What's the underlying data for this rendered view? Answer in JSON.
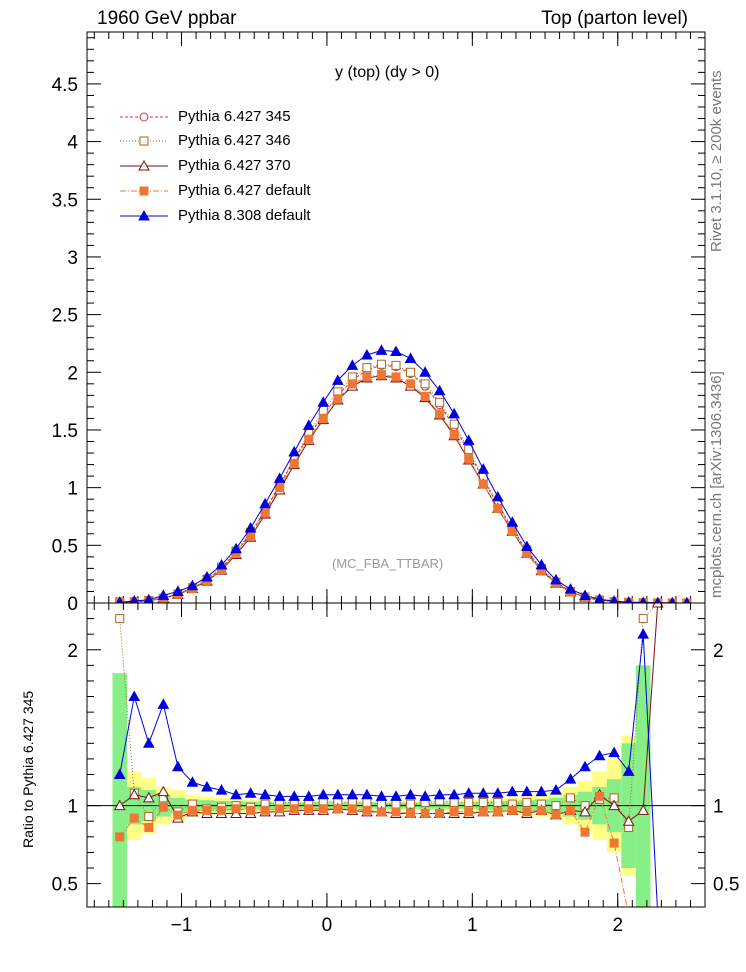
{
  "header": {
    "left": "1960 GeV ppbar",
    "right": "Top (parton level)",
    "plot_title": "y (top) (dy > 0)",
    "reference_label": "(MC_FBA_TTBAR)"
  },
  "side_labels": {
    "rivet": "Rivet 3.1.10, ≥ 200k events",
    "source": "mcplots.cern.ch [arXiv:1306.3436]"
  },
  "ratio_ylabel": "Ratio to Pythia 6.427 345",
  "colors": {
    "p345": "#cc3344",
    "p346": "#aa6622",
    "p370": "#771111",
    "pdefault": "#ee7733",
    "p8": "#0000dd",
    "band_yellow": "#ffff88",
    "band_green": "#88ee88"
  },
  "chart_data": [
    {
      "type": "line",
      "panel": "main",
      "xlim": [
        -1.65,
        2.6
      ],
      "ylim": [
        0,
        4.95
      ],
      "xticks": [
        -1,
        0,
        1,
        2
      ],
      "yticks": [
        0,
        0.5,
        1,
        1.5,
        2,
        2.5,
        3,
        3.5,
        4,
        4.5
      ],
      "ytick_labels": [
        "0",
        "0.5",
        "1",
        "1.5",
        "2",
        "2.5",
        "3",
        "3.5",
        "4",
        "4.5"
      ],
      "x": [
        -1.425,
        -1.325,
        -1.225,
        -1.125,
        -1.025,
        -0.925,
        -0.825,
        -0.725,
        -0.625,
        -0.525,
        -0.425,
        -0.325,
        -0.225,
        -0.125,
        -0.025,
        0.075,
        0.175,
        0.275,
        0.375,
        0.475,
        0.575,
        0.675,
        0.775,
        0.875,
        0.975,
        1.075,
        1.175,
        1.275,
        1.375,
        1.475,
        1.575,
        1.675,
        1.775,
        1.875,
        1.975,
        2.075,
        2.175,
        2.275,
        2.375,
        2.475
      ],
      "series": [
        {
          "name": "Pythia 6.427 345",
          "key": "p345",
          "marker": "circle-open",
          "dash": "3,2",
          "values": [
            0.005,
            0.01,
            0.02,
            0.04,
            0.08,
            0.13,
            0.2,
            0.3,
            0.44,
            0.6,
            0.8,
            1.02,
            1.24,
            1.45,
            1.63,
            1.8,
            1.93,
            2.02,
            2.06,
            2.05,
            1.99,
            1.88,
            1.72,
            1.53,
            1.31,
            1.07,
            0.85,
            0.64,
            0.45,
            0.29,
            0.18,
            0.1,
            0.05,
            0.025,
            0.012,
            0.006,
            0.003,
            0.001,
            0.0005,
            0.0002
          ]
        },
        {
          "name": "Pythia 6.427 346",
          "key": "p346",
          "marker": "square-open",
          "dash": "1,2",
          "values": [
            0.01,
            0.012,
            0.022,
            0.042,
            0.078,
            0.132,
            0.205,
            0.31,
            0.45,
            0.61,
            0.81,
            1.03,
            1.25,
            1.47,
            1.67,
            1.83,
            1.96,
            2.04,
            2.07,
            2.06,
            2.0,
            1.9,
            1.74,
            1.55,
            1.33,
            1.09,
            0.86,
            0.65,
            0.46,
            0.3,
            0.18,
            0.1,
            0.052,
            0.026,
            0.013,
            0.006,
            0.003,
            0.001,
            0.0005,
            0.0002
          ]
        },
        {
          "name": "Pythia 6.427 370",
          "key": "p370",
          "marker": "triangle-open",
          "dash": "",
          "values": [
            0.005,
            0.011,
            0.021,
            0.043,
            0.074,
            0.125,
            0.19,
            0.285,
            0.42,
            0.57,
            0.77,
            0.98,
            1.2,
            1.41,
            1.59,
            1.76,
            1.88,
            1.95,
            1.97,
            1.95,
            1.88,
            1.78,
            1.63,
            1.45,
            1.24,
            1.03,
            0.82,
            0.62,
            0.43,
            0.28,
            0.17,
            0.095,
            0.05,
            0.025,
            0.012,
            0.005,
            0.003,
            0.001,
            0.0005,
            0.0002
          ]
        },
        {
          "name": "Pythia 6.427 default",
          "key": "pdefault",
          "marker": "square-filled",
          "dash": "6,2,1,2",
          "values": [
            0.004,
            0.009,
            0.019,
            0.039,
            0.075,
            0.126,
            0.194,
            0.29,
            0.43,
            0.58,
            0.78,
            1.0,
            1.21,
            1.42,
            1.6,
            1.77,
            1.9,
            1.96,
            1.98,
            1.96,
            1.9,
            1.79,
            1.64,
            1.46,
            1.25,
            1.03,
            0.82,
            0.62,
            0.43,
            0.28,
            0.17,
            0.095,
            0.05,
            0.025,
            0.012,
            0.005,
            0.002,
            0.001,
            0.0005,
            0.0002
          ]
        },
        {
          "name": "Pythia 8.308 default",
          "key": "p8",
          "marker": "triangle-filled",
          "dash": "",
          "values": [
            0.006,
            0.017,
            0.028,
            0.066,
            0.1,
            0.15,
            0.225,
            0.33,
            0.47,
            0.65,
            0.86,
            1.08,
            1.31,
            1.54,
            1.74,
            1.93,
            2.06,
            2.15,
            2.19,
            2.18,
            2.12,
            2.0,
            1.84,
            1.64,
            1.41,
            1.16,
            0.92,
            0.7,
            0.49,
            0.33,
            0.2,
            0.12,
            0.065,
            0.033,
            0.016,
            0.008,
            0.004,
            0.002,
            0.001,
            0.0005
          ]
        }
      ]
    },
    {
      "type": "line",
      "panel": "ratio",
      "ylabel": "Ratio to Pythia 6.427 345",
      "xlim": [
        -1.65,
        2.6
      ],
      "ylim": [
        0.35,
        2.3
      ],
      "xticks": [
        -1,
        0,
        1,
        2
      ],
      "xtick_labels": [
        "−1",
        "0",
        "1",
        "2"
      ],
      "yticks": [
        0.5,
        1,
        2
      ],
      "ytick_labels": [
        "0.5",
        "1",
        "2"
      ],
      "reference_line": 1,
      "band_x": [
        -1.425,
        -1.325,
        -1.225,
        -1.125,
        -1.025,
        -0.925,
        -0.825,
        -0.725,
        -0.625,
        -0.525,
        -0.425,
        -0.325,
        -0.225,
        -0.125,
        -0.025,
        0.075,
        0.175,
        0.275,
        0.375,
        0.475,
        0.575,
        0.675,
        0.775,
        0.875,
        0.975,
        1.075,
        1.175,
        1.275,
        1.375,
        1.475,
        1.575,
        1.675,
        1.775,
        1.875,
        1.975,
        2.075,
        2.175
      ],
      "band_yellow": [
        0.65,
        0.22,
        0.18,
        0.12,
        0.1,
        0.07,
        0.06,
        0.05,
        0.05,
        0.04,
        0.04,
        0.035,
        0.035,
        0.03,
        0.03,
        0.03,
        0.03,
        0.03,
        0.03,
        0.03,
        0.03,
        0.03,
        0.03,
        0.03,
        0.035,
        0.04,
        0.045,
        0.05,
        0.06,
        0.07,
        0.09,
        0.12,
        0.16,
        0.22,
        0.3,
        0.45,
        0.8
      ],
      "band_green": [
        0.85,
        0.12,
        0.1,
        0.07,
        0.05,
        0.04,
        0.035,
        0.03,
        0.03,
        0.025,
        0.025,
        0.02,
        0.02,
        0.02,
        0.02,
        0.02,
        0.02,
        0.02,
        0.02,
        0.02,
        0.02,
        0.02,
        0.02,
        0.02,
        0.02,
        0.025,
        0.03,
        0.03,
        0.035,
        0.04,
        0.05,
        0.07,
        0.09,
        0.12,
        0.17,
        0.4,
        0.9
      ],
      "x": [
        -1.425,
        -1.325,
        -1.225,
        -1.125,
        -1.025,
        -0.925,
        -0.825,
        -0.725,
        -0.625,
        -0.525,
        -0.425,
        -0.325,
        -0.225,
        -0.125,
        -0.025,
        0.075,
        0.175,
        0.275,
        0.375,
        0.475,
        0.575,
        0.675,
        0.775,
        0.875,
        0.975,
        1.075,
        1.175,
        1.275,
        1.375,
        1.475,
        1.575,
        1.675,
        1.775,
        1.875,
        1.975,
        2.075,
        2.175,
        2.275
      ],
      "series": [
        {
          "name": "Pythia 6.427 346",
          "key": "p346",
          "marker": "square-open",
          "dash": "1,2",
          "values": [
            2.2,
            1.08,
            0.93,
            1.05,
            0.96,
            1.01,
            0.98,
            0.99,
            1.0,
            0.99,
            1.01,
            1.02,
            1.02,
            1.01,
            1.03,
            1.02,
            1.02,
            1.02,
            1.01,
            1.01,
            1.01,
            1.02,
            1.03,
            1.02,
            1.02,
            1.02,
            1.02,
            1.01,
            1.02,
            1.01,
            1.0,
            1.05,
            1.0,
            1.04,
            1.05,
            0.86,
            2.2,
            2.3
          ]
        },
        {
          "name": "Pythia 6.427 370",
          "key": "p370",
          "marker": "triangle-open",
          "dash": "",
          "values": [
            1.0,
            1.07,
            1.05,
            1.09,
            0.92,
            0.96,
            0.95,
            0.95,
            0.95,
            0.95,
            0.96,
            0.96,
            0.97,
            0.97,
            0.97,
            0.98,
            0.97,
            0.96,
            0.96,
            0.95,
            0.95,
            0.95,
            0.95,
            0.95,
            0.95,
            0.96,
            0.96,
            0.97,
            0.95,
            0.97,
            0.94,
            0.97,
            0.96,
            1.07,
            1.0,
            0.9,
            0.97,
            2.3
          ]
        },
        {
          "name": "Pythia 6.427 default",
          "key": "pdefault",
          "marker": "square-filled",
          "dash": "6,2,1,2",
          "values": [
            0.8,
            0.92,
            0.86,
            0.99,
            0.94,
            0.97,
            0.97,
            0.97,
            0.98,
            0.97,
            0.97,
            0.98,
            0.98,
            0.98,
            0.98,
            0.98,
            0.98,
            0.97,
            0.96,
            0.96,
            0.95,
            0.95,
            0.95,
            0.96,
            0.96,
            0.96,
            0.96,
            0.97,
            0.96,
            0.97,
            0.94,
            0.97,
            0.83,
            1.06,
            0.76,
            0.3,
            0.3,
            0.3
          ]
        },
        {
          "name": "Pythia 8.308 default",
          "key": "p8",
          "marker": "triangle-filled",
          "dash": "",
          "values": [
            1.2,
            1.7,
            1.4,
            1.65,
            1.25,
            1.15,
            1.12,
            1.1,
            1.07,
            1.08,
            1.07,
            1.06,
            1.06,
            1.06,
            1.07,
            1.07,
            1.07,
            1.07,
            1.06,
            1.06,
            1.07,
            1.06,
            1.07,
            1.07,
            1.08,
            1.08,
            1.08,
            1.09,
            1.09,
            1.09,
            1.1,
            1.17,
            1.25,
            1.32,
            1.34,
            1.22,
            2.1,
            0.3
          ]
        }
      ]
    }
  ]
}
